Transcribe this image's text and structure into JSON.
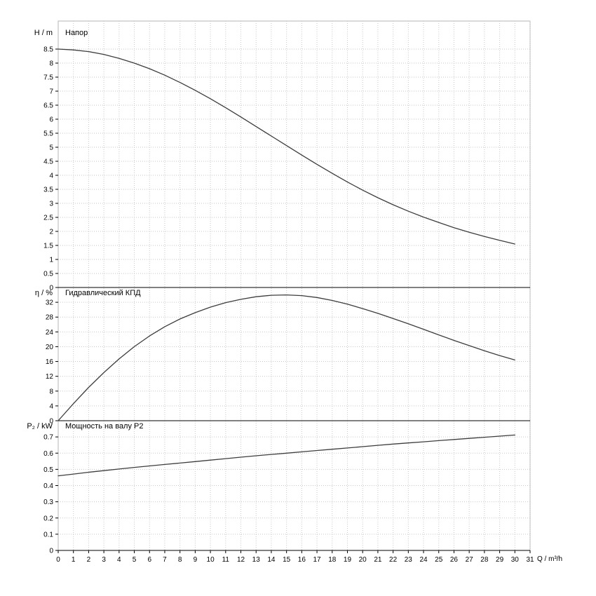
{
  "chart_data": [
    {
      "type": "line",
      "title": "Напор",
      "ylabel": "H / m",
      "ylim": [
        0,
        9.5
      ],
      "yticks": [
        0,
        0.5,
        1,
        1.5,
        2,
        2.5,
        3,
        3.5,
        4,
        4.5,
        5,
        5.5,
        6,
        6.5,
        7,
        7.5,
        8,
        8.5
      ],
      "x": [
        0,
        1,
        2,
        3,
        4,
        5,
        6,
        7,
        8,
        9,
        10,
        11,
        12,
        13,
        14,
        15,
        16,
        17,
        18,
        19,
        20,
        21,
        22,
        23,
        24,
        25,
        26,
        27,
        28,
        29,
        30
      ],
      "values": [
        8.5,
        8.47,
        8.41,
        8.31,
        8.17,
        8.0,
        7.8,
        7.57,
        7.31,
        7.03,
        6.73,
        6.41,
        6.08,
        5.74,
        5.4,
        5.06,
        4.72,
        4.39,
        4.07,
        3.76,
        3.47,
        3.2,
        2.95,
        2.72,
        2.51,
        2.32,
        2.13,
        1.97,
        1.82,
        1.68,
        1.55
      ]
    },
    {
      "type": "line",
      "title": "Гидравлический КПД",
      "ylabel": "η / %",
      "ylim": [
        0,
        36
      ],
      "yticks": [
        0,
        4,
        8,
        12,
        16,
        20,
        24,
        28,
        32
      ],
      "x": [
        0,
        1,
        2,
        3,
        4,
        5,
        6,
        7,
        8,
        9,
        10,
        11,
        12,
        13,
        14,
        15,
        16,
        17,
        18,
        19,
        20,
        21,
        22,
        23,
        24,
        25,
        26,
        27,
        28,
        29,
        30
      ],
      "values": [
        0,
        4.6,
        9.0,
        13.0,
        16.7,
        20.0,
        22.9,
        25.4,
        27.5,
        29.2,
        30.7,
        31.9,
        32.8,
        33.5,
        33.9,
        34.0,
        33.8,
        33.3,
        32.5,
        31.5,
        30.3,
        29.0,
        27.6,
        26.2,
        24.7,
        23.2,
        21.7,
        20.3,
        18.9,
        17.6,
        16.4
      ]
    },
    {
      "type": "line",
      "title": "Мощность на валу P2",
      "ylabel": "P₂ / kW",
      "ylim": [
        0,
        0.8
      ],
      "yticks": [
        0,
        0.1,
        0.2,
        0.3,
        0.4,
        0.5,
        0.6,
        0.7
      ],
      "x": [
        0,
        1,
        2,
        3,
        4,
        5,
        6,
        7,
        8,
        9,
        10,
        11,
        12,
        13,
        14,
        15,
        16,
        17,
        18,
        19,
        20,
        21,
        22,
        23,
        24,
        25,
        26,
        27,
        28,
        29,
        30
      ],
      "values": [
        0.46,
        0.471,
        0.482,
        0.492,
        0.502,
        0.512,
        0.521,
        0.53,
        0.539,
        0.548,
        0.557,
        0.566,
        0.575,
        0.584,
        0.592,
        0.6,
        0.608,
        0.616,
        0.624,
        0.632,
        0.64,
        0.648,
        0.656,
        0.663,
        0.67,
        0.677,
        0.684,
        0.691,
        0.698,
        0.705,
        0.712
      ]
    }
  ],
  "x_axis": {
    "label": "Q / m³/h",
    "min": 0,
    "max": 31,
    "tick_step": 1
  },
  "layout_hints": {
    "grid": "dotted light gray, vertical every 1 m³/h, horizontal at y ticks",
    "legend": "none",
    "panels_stacked": 3
  },
  "colors": {
    "curve": "#3d3d3d",
    "grid": "#c9c9c9",
    "axis": "#000000",
    "frame": "#b4b4b4",
    "background": "#ffffff"
  }
}
